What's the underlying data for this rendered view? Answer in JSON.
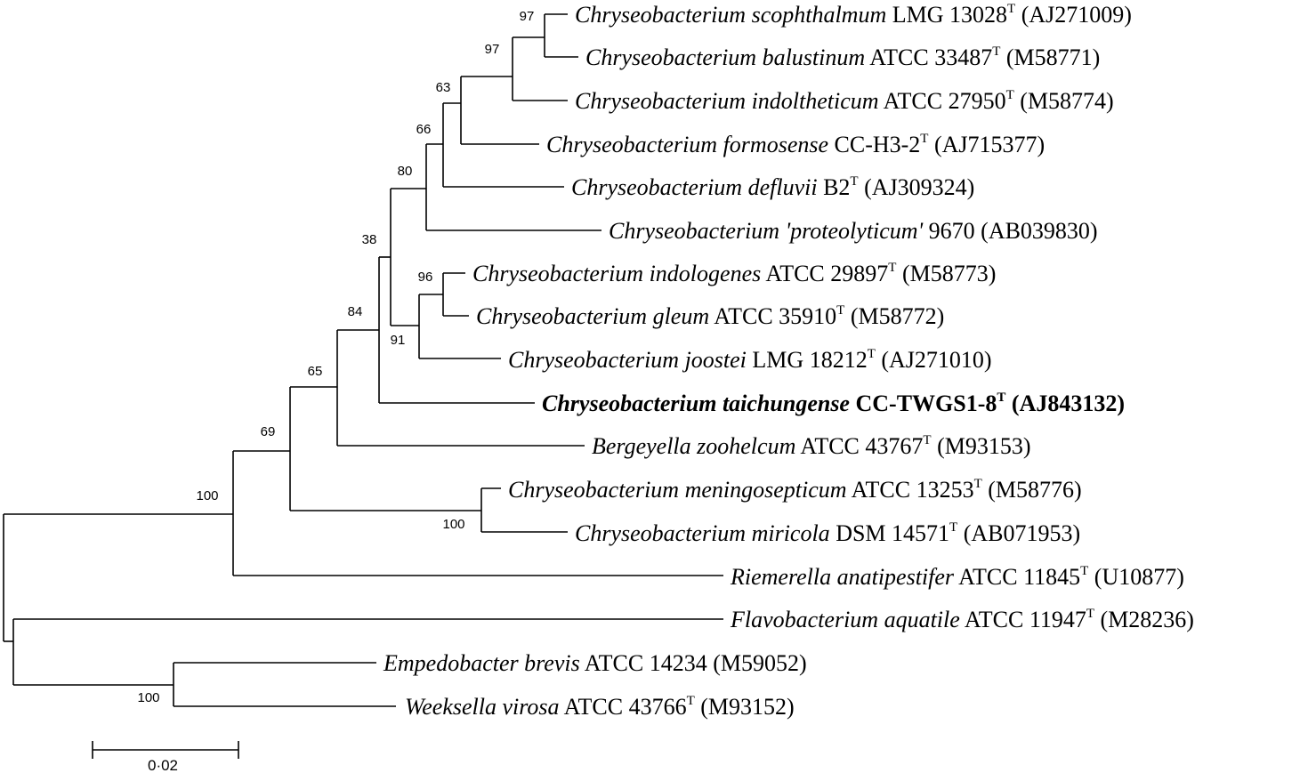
{
  "taxa": [
    {
      "id": "scophthalmum",
      "species": "Chryseobacterium scophthalmum",
      "strain": "LMG 13028",
      "type_strain": "T",
      "accession": "(AJ271009)"
    },
    {
      "id": "balustinum",
      "species": "Chryseobacterium balustinum",
      "strain": "ATCC 33487",
      "type_strain": "T",
      "accession": "(M58771)"
    },
    {
      "id": "indoltheticum",
      "species": "Chryseobacterium indoltheticum",
      "strain": "ATCC 27950",
      "type_strain": "T",
      "accession": "(M58774)"
    },
    {
      "id": "formosense",
      "species": "Chryseobacterium formosense",
      "strain": "CC-H3-2",
      "type_strain": "T",
      "accession": "(AJ715377)"
    },
    {
      "id": "defluvii",
      "species": "Chryseobacterium defluvii",
      "strain": "B2",
      "type_strain": "T",
      "accession": "(AJ309324)"
    },
    {
      "id": "proteolyticum",
      "species": "Chryseobacterium 'proteolyticum'",
      "strain": "9670",
      "type_strain": "",
      "accession": "(AB039830)"
    },
    {
      "id": "indologenes",
      "species": "Chryseobacterium indologenes",
      "strain": "ATCC 29897",
      "type_strain": "T",
      "accession": "(M58773)"
    },
    {
      "id": "gleum",
      "species": "Chryseobacterium gleum",
      "strain": "ATCC 35910",
      "type_strain": "T",
      "accession": "(M58772)"
    },
    {
      "id": "joostei",
      "species": "Chryseobacterium joostei",
      "strain": "LMG 18212",
      "type_strain": "T",
      "accession": "(AJ271010)"
    },
    {
      "id": "taichungense",
      "species": "Chryseobacterium taichungense",
      "strain": "CC-TWGS1-8",
      "type_strain": "T",
      "accession": "(AJ843132)",
      "bold": true
    },
    {
      "id": "zoohelcum",
      "species": "Bergeyella zoohelcum",
      "strain": "ATCC 43767",
      "type_strain": "T",
      "accession": "(M93153)"
    },
    {
      "id": "meningosepticum",
      "species": "Chryseobacterium meningosepticum",
      "strain": "ATCC 13253",
      "type_strain": "T",
      "accession": "(M58776)"
    },
    {
      "id": "miricola",
      "species": "Chryseobacterium miricola",
      "strain": "DSM 14571",
      "type_strain": "T",
      "accession": "(AB071953)"
    },
    {
      "id": "anatipestifer",
      "species": "Riemerella anatipestifer",
      "strain": "ATCC 11845",
      "type_strain": "T",
      "accession": "(U10877)"
    },
    {
      "id": "aquatile",
      "species": "Flavobacterium aquatile",
      "strain": "ATCC 11947",
      "type_strain": "T",
      "accession": "(M28236)"
    },
    {
      "id": "brevis",
      "species": "Empedobacter brevis",
      "strain": "ATCC 14234",
      "type_strain": "",
      "accession": "(M59052)"
    },
    {
      "id": "virosa",
      "species": "Weeksella virosa",
      "strain": "ATCC 43766",
      "type_strain": "T",
      "accession": "(M93152)"
    }
  ],
  "bootstrap": {
    "scoph_balust": "97",
    "scoph_balust_indol": "97",
    "chryseo_core": "63",
    "with_defluvii": "66",
    "with_proteolyticum": "80",
    "indologenes_gleum": "96",
    "with_joostei": "91",
    "chryseo_group": "38",
    "with_zoohelcum": "84",
    "with_meningo": "65",
    "with_riemerella": "69",
    "ingroup": "100",
    "meningo_miricola": "100",
    "brevis_virosa": "100"
  },
  "scale_bar": {
    "label": "0·02",
    "value": 0.02
  }
}
